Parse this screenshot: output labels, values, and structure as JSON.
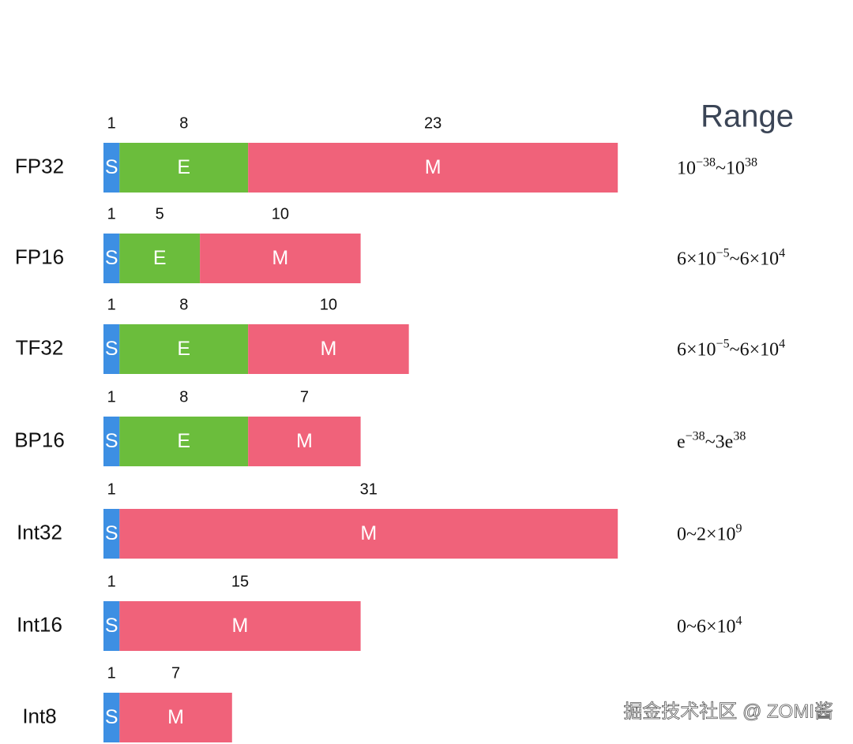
{
  "header": {
    "title": "Range"
  },
  "rows": [
    {
      "name": "FP32",
      "segments": [
        {
          "label": "S",
          "bits": 1
        },
        {
          "label": "E",
          "bits": 8
        },
        {
          "label": "M",
          "bits": 23
        }
      ],
      "range": [
        [
          "10",
          "−38"
        ],
        [
          "~10",
          "38"
        ]
      ]
    },
    {
      "name": "FP16",
      "segments": [
        {
          "label": "S",
          "bits": 1
        },
        {
          "label": "E",
          "bits": 5
        },
        {
          "label": "M",
          "bits": 10
        }
      ],
      "range": [
        [
          "6×10",
          "−5"
        ],
        [
          "~6×10",
          "4"
        ]
      ]
    },
    {
      "name": "TF32",
      "segments": [
        {
          "label": "S",
          "bits": 1
        },
        {
          "label": "E",
          "bits": 8
        },
        {
          "label": "M",
          "bits": 10
        }
      ],
      "range": [
        [
          "6×10",
          "−5"
        ],
        [
          "~6×10",
          "4"
        ]
      ]
    },
    {
      "name": "BP16",
      "segments": [
        {
          "label": "S",
          "bits": 1
        },
        {
          "label": "E",
          "bits": 8
        },
        {
          "label": "M",
          "bits": 7
        }
      ],
      "range": [
        [
          "e",
          "−38"
        ],
        [
          "~3e",
          "38"
        ]
      ]
    },
    {
      "name": "Int32",
      "segments": [
        {
          "label": "S",
          "bits": 1
        },
        {
          "label": "M",
          "bits": 31
        }
      ],
      "range": [
        [
          "0~2×10",
          "9"
        ]
      ]
    },
    {
      "name": "Int16",
      "segments": [
        {
          "label": "S",
          "bits": 1
        },
        {
          "label": "M",
          "bits": 15
        }
      ],
      "range": [
        [
          "0~6×10",
          "4"
        ]
      ]
    },
    {
      "name": "Int8",
      "segments": [
        {
          "label": "S",
          "bits": 1
        },
        {
          "label": "M",
          "bits": 7
        }
      ]
    }
  ],
  "watermark": "掘金技术社区 @ ZOMI酱"
}
